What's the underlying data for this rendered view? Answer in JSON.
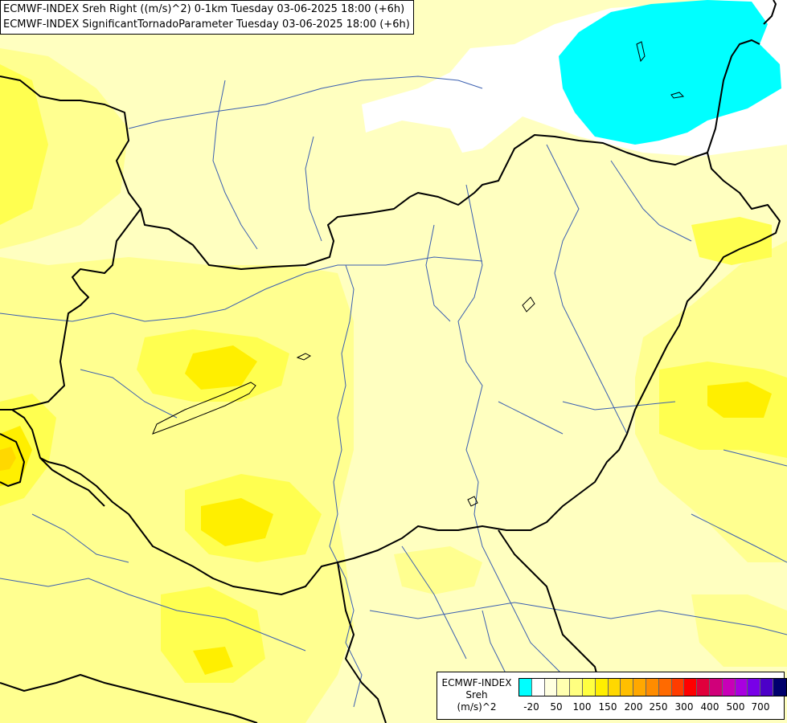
{
  "titles": {
    "line1": "ECMWF-INDEX Sreh Right ((m/s)^2) 0-1km Tuesday 03-06-2025 18:00 (+6h)",
    "line2": "ECMWF-INDEX SignificantTornadoParameter Tuesday 03-06-2025 18:00 (+6h)"
  },
  "legend": {
    "source": "ECMWF-INDEX",
    "variable": "Sreh",
    "units": "(m/s)^2",
    "colors": [
      "#00ffff",
      "#ffffff",
      "#ffffe0",
      "#ffffb0",
      "#ffff80",
      "#ffff40",
      "#ffef00",
      "#ffd800",
      "#ffbf00",
      "#ffa800",
      "#ff8c00",
      "#ff6a00",
      "#ff3c00",
      "#ff0000",
      "#e0003c",
      "#d0007a",
      "#c800b8",
      "#a800e0",
      "#7800e8",
      "#4c00c8",
      "#00006c"
    ],
    "tick_labels": [
      "-20",
      "50",
      "100",
      "150",
      "200",
      "250",
      "300",
      "400",
      "500",
      "700"
    ]
  },
  "fields": {
    "cyan": "#00ffff",
    "white": "#ffffff",
    "pale": "#ffffc0",
    "light": "#ffff90",
    "medium": "#ffff50",
    "strong": "#ffef00",
    "peak": "#ffd800"
  }
}
